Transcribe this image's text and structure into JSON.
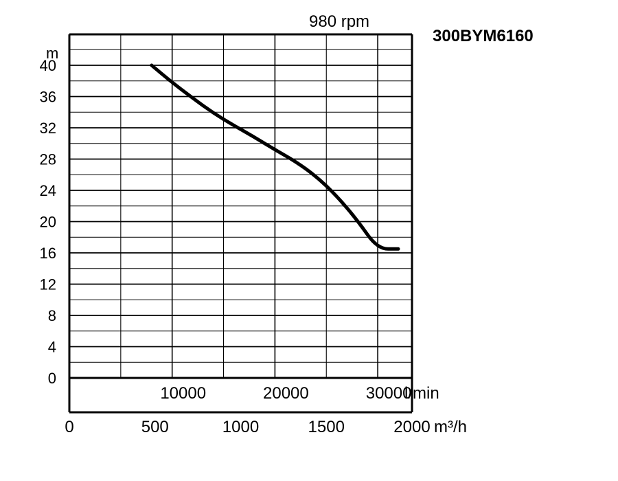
{
  "chart_data": {
    "type": "line",
    "model_label": "300BYM6160",
    "speed_label": "980 rpm",
    "y_unit": "m",
    "x_unit_primary": "l/min",
    "x_unit_secondary": "m³/h",
    "ylim": [
      0,
      40
    ],
    "y_ticks": [
      "0",
      "4",
      "8",
      "12",
      "16",
      "20",
      "24",
      "28",
      "32",
      "36",
      "40"
    ],
    "xlim_m3h": [
      0,
      2000
    ],
    "x_ticks_m3h": [
      "0",
      "500",
      "1000",
      "1500",
      "2000"
    ],
    "x_ticks_lmin": [
      "10000",
      "20000",
      "30000"
    ],
    "x_ticks_lmin_values": [
      10000,
      20000,
      30000
    ],
    "grid": true,
    "series": [
      {
        "x": [
          8000,
          10000,
          12000,
          14000,
          16000,
          18000,
          20000,
          22000,
          24000,
          26000,
          28000,
          30000,
          32000
        ],
        "y": [
          40,
          37.8,
          35.8,
          33.9,
          32.3,
          30.8,
          29.2,
          27.7,
          25.8,
          23.3,
          20.2,
          16.5,
          16.5
        ]
      }
    ],
    "curve_color": "#000000"
  }
}
